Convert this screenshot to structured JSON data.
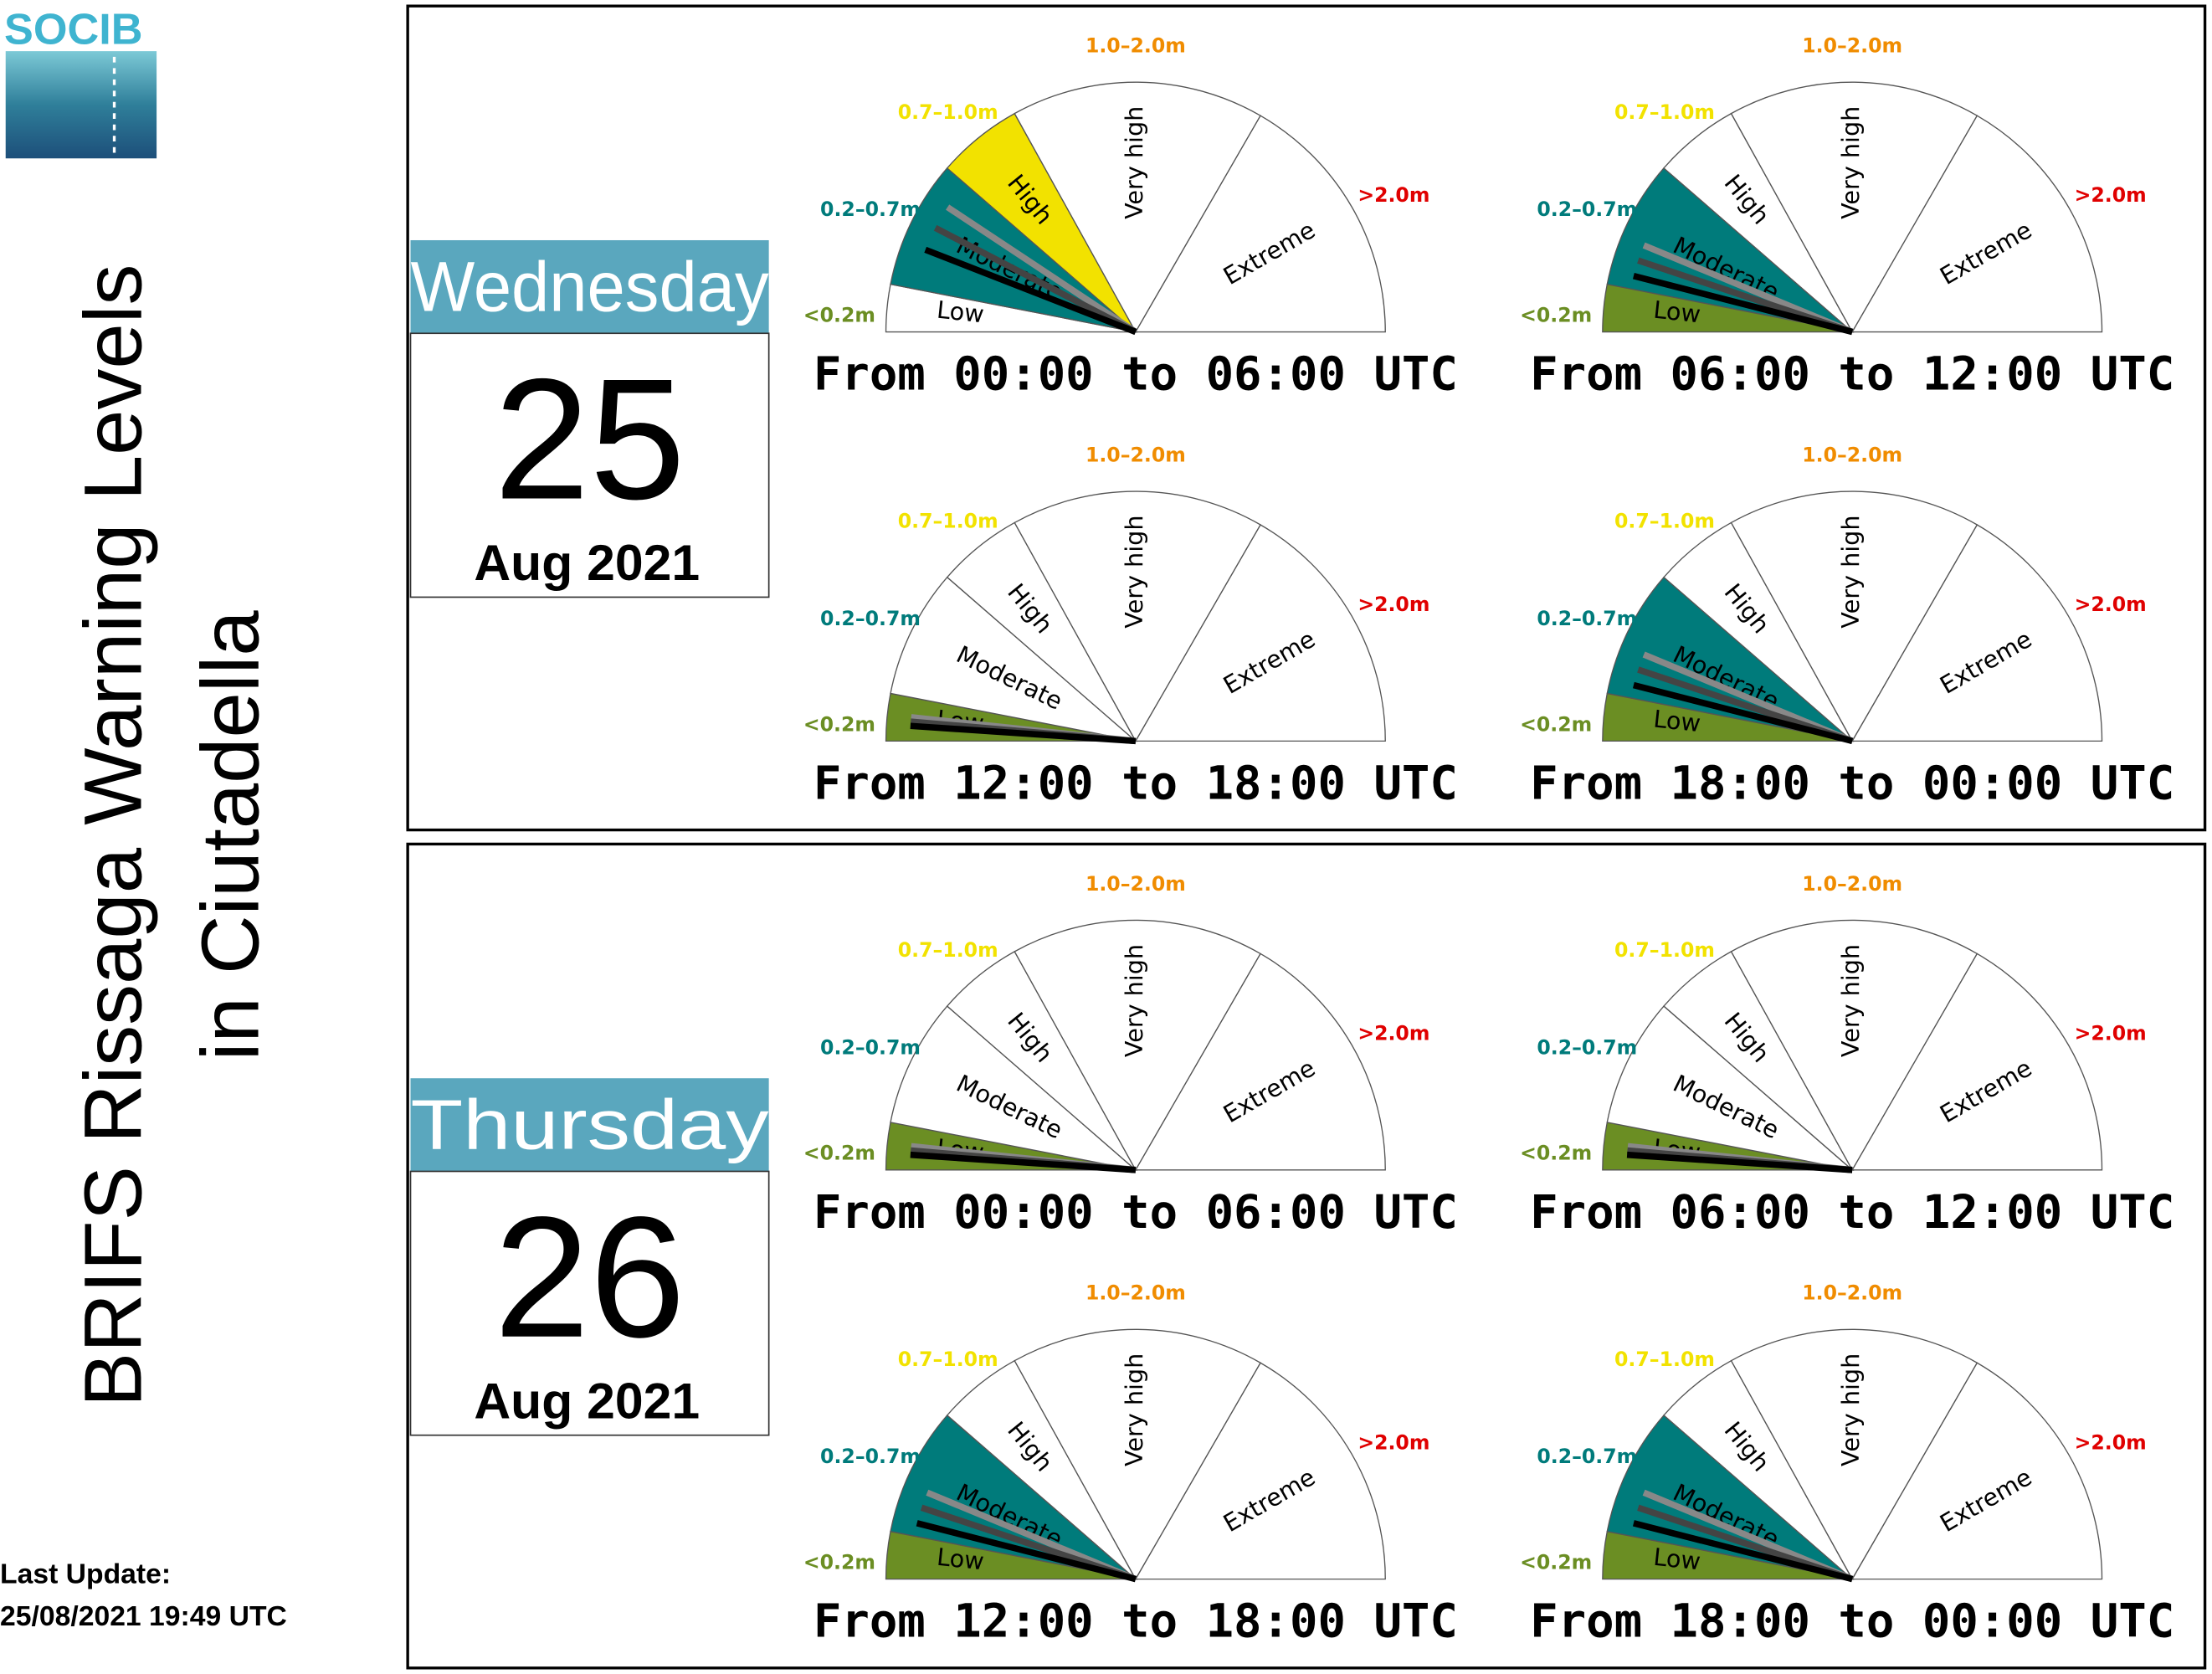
{
  "logo": "SOCIB",
  "title_line1": "BRIFS Rissaga Warning Levels",
  "title_line2": "in Ciutadella",
  "last_update_label": "Last Update:",
  "last_update": "25/08/2021 19:49 UTC",
  "levels": [
    {
      "name": "Low",
      "range": "<0.2m",
      "color": "#6b8e23"
    },
    {
      "name": "Moderate",
      "range": "0.2–0.7m",
      "color": "#007b7b"
    },
    {
      "name": "High",
      "range": "0.7–1.0m",
      "color": "#f2e200"
    },
    {
      "name": "Very high",
      "range": "1.0–2.0m",
      "color": "#f08c00"
    },
    {
      "name": "Extreme",
      "range": ">2.0m",
      "color": "#e00000"
    }
  ],
  "days": [
    {
      "weekday": "Wednesday",
      "day": "25",
      "month_year": "Aug 2021",
      "gauges": [
        {
          "period": "From 00:00 to 06:00 UTC",
          "filled": [
            false,
            true,
            true,
            false,
            false
          ]
        },
        {
          "period": "From 06:00 to 12:00 UTC",
          "filled": [
            true,
            true,
            false,
            false,
            false
          ]
        },
        {
          "period": "From 12:00 to 18:00 UTC",
          "filled": [
            true,
            false,
            false,
            false,
            false
          ]
        },
        {
          "period": "From 18:00 to 00:00 UTC",
          "filled": [
            true,
            true,
            false,
            false,
            false
          ]
        }
      ]
    },
    {
      "weekday": "Thursday",
      "day": "26",
      "month_year": "Aug 2021",
      "gauges": [
        {
          "period": "From 00:00 to 06:00 UTC",
          "filled": [
            true,
            false,
            false,
            false,
            false
          ]
        },
        {
          "period": "From 06:00 to 12:00 UTC",
          "filled": [
            true,
            false,
            false,
            false,
            false
          ]
        },
        {
          "period": "From 12:00 to 18:00 UTC",
          "filled": [
            true,
            true,
            false,
            false,
            false
          ]
        },
        {
          "period": "From 18:00 to 00:00 UTC",
          "filled": [
            true,
            true,
            false,
            false,
            false
          ]
        }
      ]
    }
  ]
}
